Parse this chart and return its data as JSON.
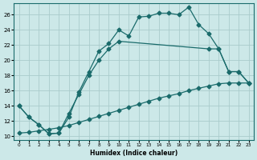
{
  "xlabel": "Humidex (Indice chaleur)",
  "xlim": [
    -0.5,
    23.5
  ],
  "ylim": [
    9.5,
    27.5
  ],
  "yticks": [
    10,
    12,
    14,
    16,
    18,
    20,
    22,
    24,
    26
  ],
  "xticks": [
    0,
    1,
    2,
    3,
    4,
    5,
    6,
    7,
    8,
    9,
    10,
    11,
    12,
    13,
    14,
    15,
    16,
    17,
    18,
    19,
    20,
    21,
    22,
    23
  ],
  "bg_color": "#cce8e8",
  "grid_color": "#aacccc",
  "line_color": "#1a6b6b",
  "line1_x": [
    0,
    1,
    2,
    3,
    4,
    5,
    6,
    7,
    8,
    9,
    10,
    11,
    12,
    13,
    14,
    15,
    16,
    17,
    18,
    19,
    20,
    21,
    22,
    23
  ],
  "line1_y": [
    14.0,
    12.5,
    11.5,
    10.3,
    10.4,
    12.5,
    15.8,
    18.5,
    21.2,
    22.2,
    24.0,
    23.2,
    25.7,
    25.8,
    26.2,
    26.2,
    26.0,
    27.0,
    24.7,
    23.5,
    21.5,
    18.5,
    18.5,
    17.0
  ],
  "line2_x": [
    0,
    1,
    2,
    3,
    4,
    5,
    6,
    7,
    8,
    9,
    10,
    19,
    20,
    21,
    22,
    23
  ],
  "line2_y": [
    14.0,
    12.5,
    11.5,
    10.3,
    10.4,
    13.0,
    15.5,
    18.0,
    20.0,
    21.5,
    22.5,
    21.5,
    21.5,
    18.5,
    18.5,
    17.0
  ],
  "line3_x": [
    0,
    1,
    2,
    3,
    4,
    5,
    6,
    7,
    8,
    9,
    10,
    11,
    12,
    13,
    14,
    15,
    16,
    17,
    18,
    19,
    20,
    21,
    22,
    23
  ],
  "line3_y": [
    10.4,
    10.5,
    10.7,
    10.9,
    11.1,
    11.4,
    11.8,
    12.2,
    12.6,
    13.0,
    13.4,
    13.8,
    14.2,
    14.6,
    15.0,
    15.3,
    15.6,
    16.0,
    16.3,
    16.6,
    16.9,
    17.0,
    17.0,
    17.0
  ],
  "markersize": 2.5,
  "linewidth": 0.9
}
